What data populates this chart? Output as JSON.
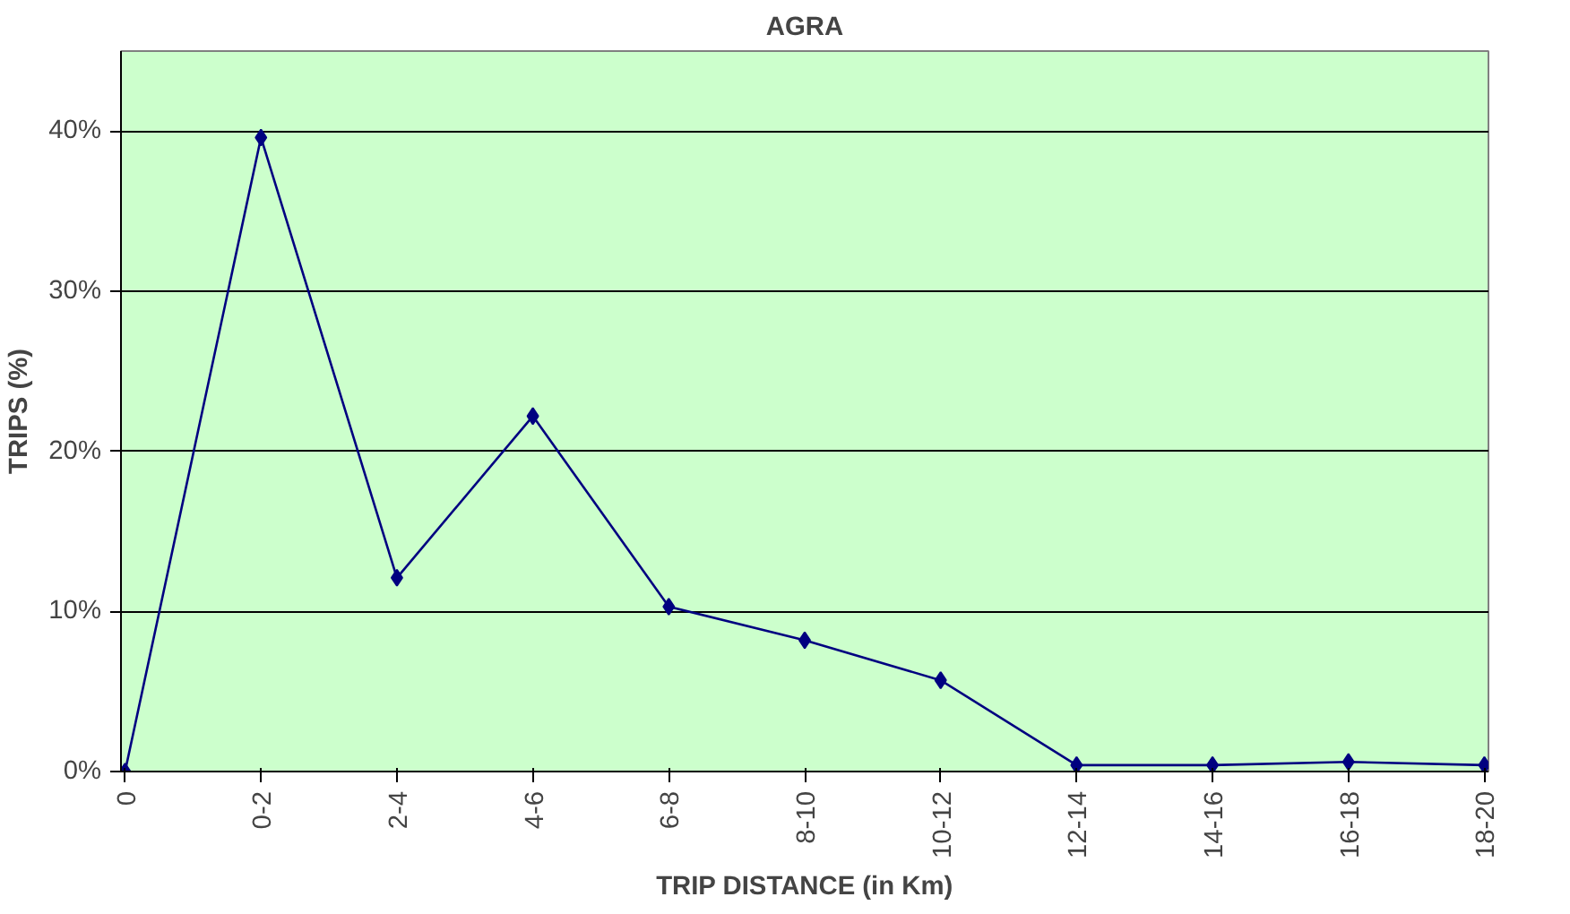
{
  "chart_data": {
    "type": "line",
    "title": "AGRA",
    "xlabel": "TRIP DISTANCE (in Km)",
    "ylabel": "TRIPS (%)",
    "categories": [
      "0",
      "0-2",
      "2-4",
      "4-6",
      "6-8",
      "8-10",
      "10-12",
      "12-14",
      "14-16",
      "16-18",
      "18-20"
    ],
    "series": [
      {
        "color": "#000080",
        "values": [
          0,
          39.6,
          12.1,
          22.2,
          10.3,
          8.2,
          5.7,
          0.4,
          0.4,
          0.6,
          0.4
        ]
      }
    ],
    "ylim": [
      0,
      45
    ],
    "yticks": [
      {
        "value": 0,
        "label": "0%"
      },
      {
        "value": 10,
        "label": "10%"
      },
      {
        "value": 20,
        "label": "20%"
      },
      {
        "value": 30,
        "label": "30%"
      },
      {
        "value": 40,
        "label": "40%"
      }
    ],
    "grid": "y",
    "marker": "diamond",
    "line_style": "solid"
  }
}
